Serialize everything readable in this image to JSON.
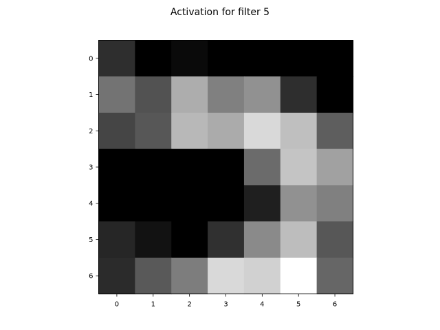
{
  "chart_data": {
    "type": "heatmap",
    "title": "Activation for filter 5",
    "colormap": "gray",
    "x_ticks": [
      "0",
      "1",
      "2",
      "3",
      "4",
      "5",
      "6"
    ],
    "y_ticks": [
      "0",
      "1",
      "2",
      "3",
      "4",
      "5",
      "6"
    ],
    "values": [
      [
        0.18,
        0.0,
        0.04,
        0.0,
        0.0,
        0.0,
        0.0
      ],
      [
        0.45,
        0.32,
        0.68,
        0.5,
        0.57,
        0.18,
        0.0
      ],
      [
        0.27,
        0.34,
        0.72,
        0.67,
        0.85,
        0.75,
        0.37
      ],
      [
        0.0,
        0.0,
        0.0,
        0.0,
        0.42,
        0.77,
        0.63
      ],
      [
        0.0,
        0.0,
        0.0,
        0.0,
        0.12,
        0.57,
        0.5
      ],
      [
        0.15,
        0.07,
        0.0,
        0.19,
        0.54,
        0.74,
        0.34
      ],
      [
        0.17,
        0.35,
        0.49,
        0.85,
        0.82,
        1.0,
        0.4
      ]
    ]
  }
}
